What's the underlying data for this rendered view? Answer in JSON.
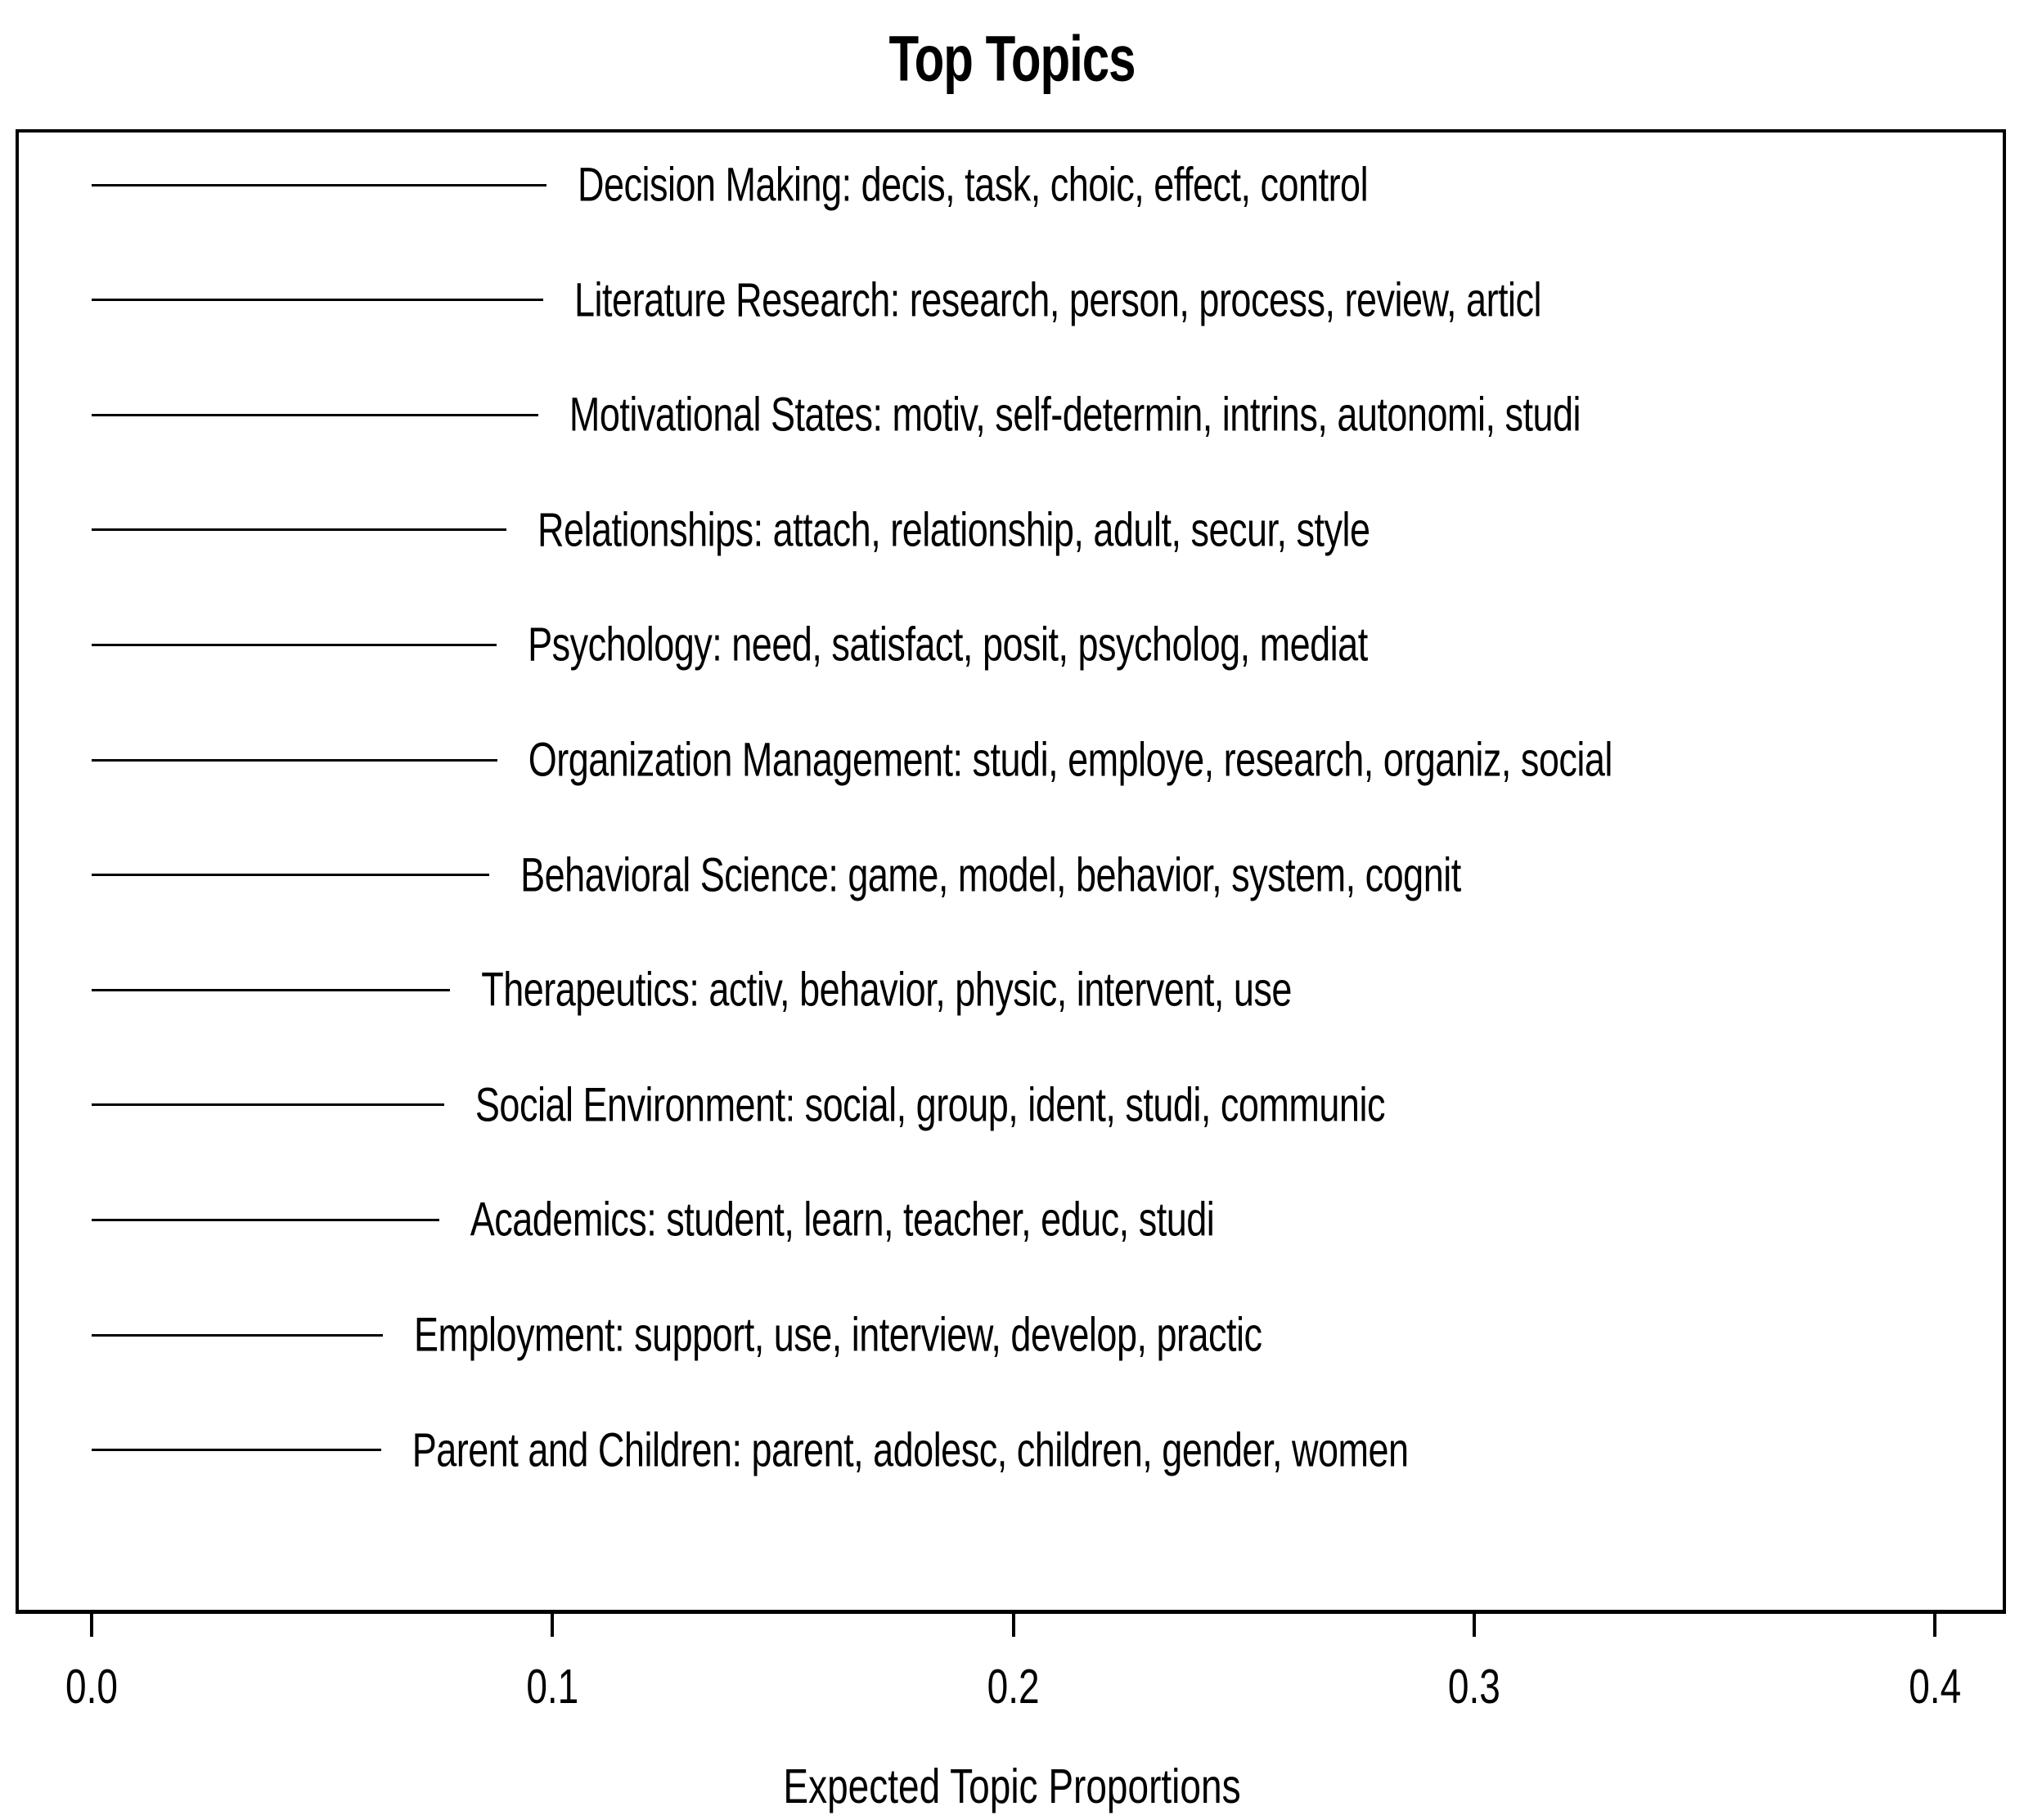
{
  "title": "Top Topics",
  "axis": {
    "xlabel": "Expected Topic Proportions",
    "tick_labels": [
      "0.0",
      "0.1",
      "0.2",
      "0.3",
      "0.4"
    ]
  },
  "chart_data": {
    "type": "bar",
    "subtype": "stm-topic-summary-line-segments",
    "orientation": "horizontal",
    "title": "Top Topics",
    "xlabel": "Expected Topic Proportions",
    "ylabel": "",
    "xlim": [
      0,
      0.4
    ],
    "xticks": [
      0,
      0.1,
      0.2,
      0.3,
      0.4
    ],
    "grid": false,
    "legend_position": "none",
    "categories": [
      "Decision Making: decis, task, choic, effect, control",
      "Literature Research: research, person, process, review, articl",
      "Motivational States: motiv, self-determin, intrins, autonomi, studi",
      "Relationships: attach, relationship, adult, secur, style",
      "Psychology: need, satisfact, posit, psycholog, mediat",
      "Organization Management: studi, employe, research, organiz, social",
      "Behavioral Science: game, model, behavior, system, cognit",
      "Therapeutics: activ, behavior, physic, intervent, use",
      "Social Environment: social, group, ident, studi, communic",
      "Academics: student, learn, teacher, educ, studi",
      "Employment: support, use, interview, develop, practic",
      "Parent and Children: parent, adolesc, children, gender, women"
    ],
    "series": [
      {
        "name": "Expected Topic Proportions",
        "values": [
          0.0987,
          0.098,
          0.0969,
          0.09,
          0.0879,
          0.088,
          0.0863,
          0.0778,
          0.0765,
          0.0754,
          0.0632,
          0.0628
        ]
      }
    ],
    "topics": [
      {
        "name": "Decision Making",
        "top_words": "decis, task, choic, effect, control",
        "proportion": 0.0987
      },
      {
        "name": "Literature Research",
        "top_words": "research, person, process, review, articl",
        "proportion": 0.098
      },
      {
        "name": "Motivational States",
        "top_words": "motiv, self-determin, intrins, autonomi, studi",
        "proportion": 0.0969
      },
      {
        "name": "Relationships",
        "top_words": "attach, relationship, adult, secur, style",
        "proportion": 0.09
      },
      {
        "name": "Psychology",
        "top_words": "need, satisfact, posit, psycholog, mediat",
        "proportion": 0.0879
      },
      {
        "name": "Organization Management",
        "top_words": "studi, employe, research, organiz, social",
        "proportion": 0.088
      },
      {
        "name": "Behavioral Science",
        "top_words": "game, model, behavior, system, cognit",
        "proportion": 0.0863
      },
      {
        "name": "Therapeutics",
        "top_words": "activ, behavior, physic, intervent, use",
        "proportion": 0.0778
      },
      {
        "name": "Social Environment",
        "top_words": "social, group, ident, studi, communic",
        "proportion": 0.0765
      },
      {
        "name": "Academics",
        "top_words": "student, learn, teacher, educ, studi",
        "proportion": 0.0754
      },
      {
        "name": "Employment",
        "top_words": "support, use, interview, develop, practic",
        "proportion": 0.0632
      },
      {
        "name": "Parent and Children",
        "top_words": "parent, adolesc, children, gender, women",
        "proportion": 0.0628
      }
    ],
    "colors": {
      "background": "#ffffff",
      "foreground": "#000000"
    }
  }
}
